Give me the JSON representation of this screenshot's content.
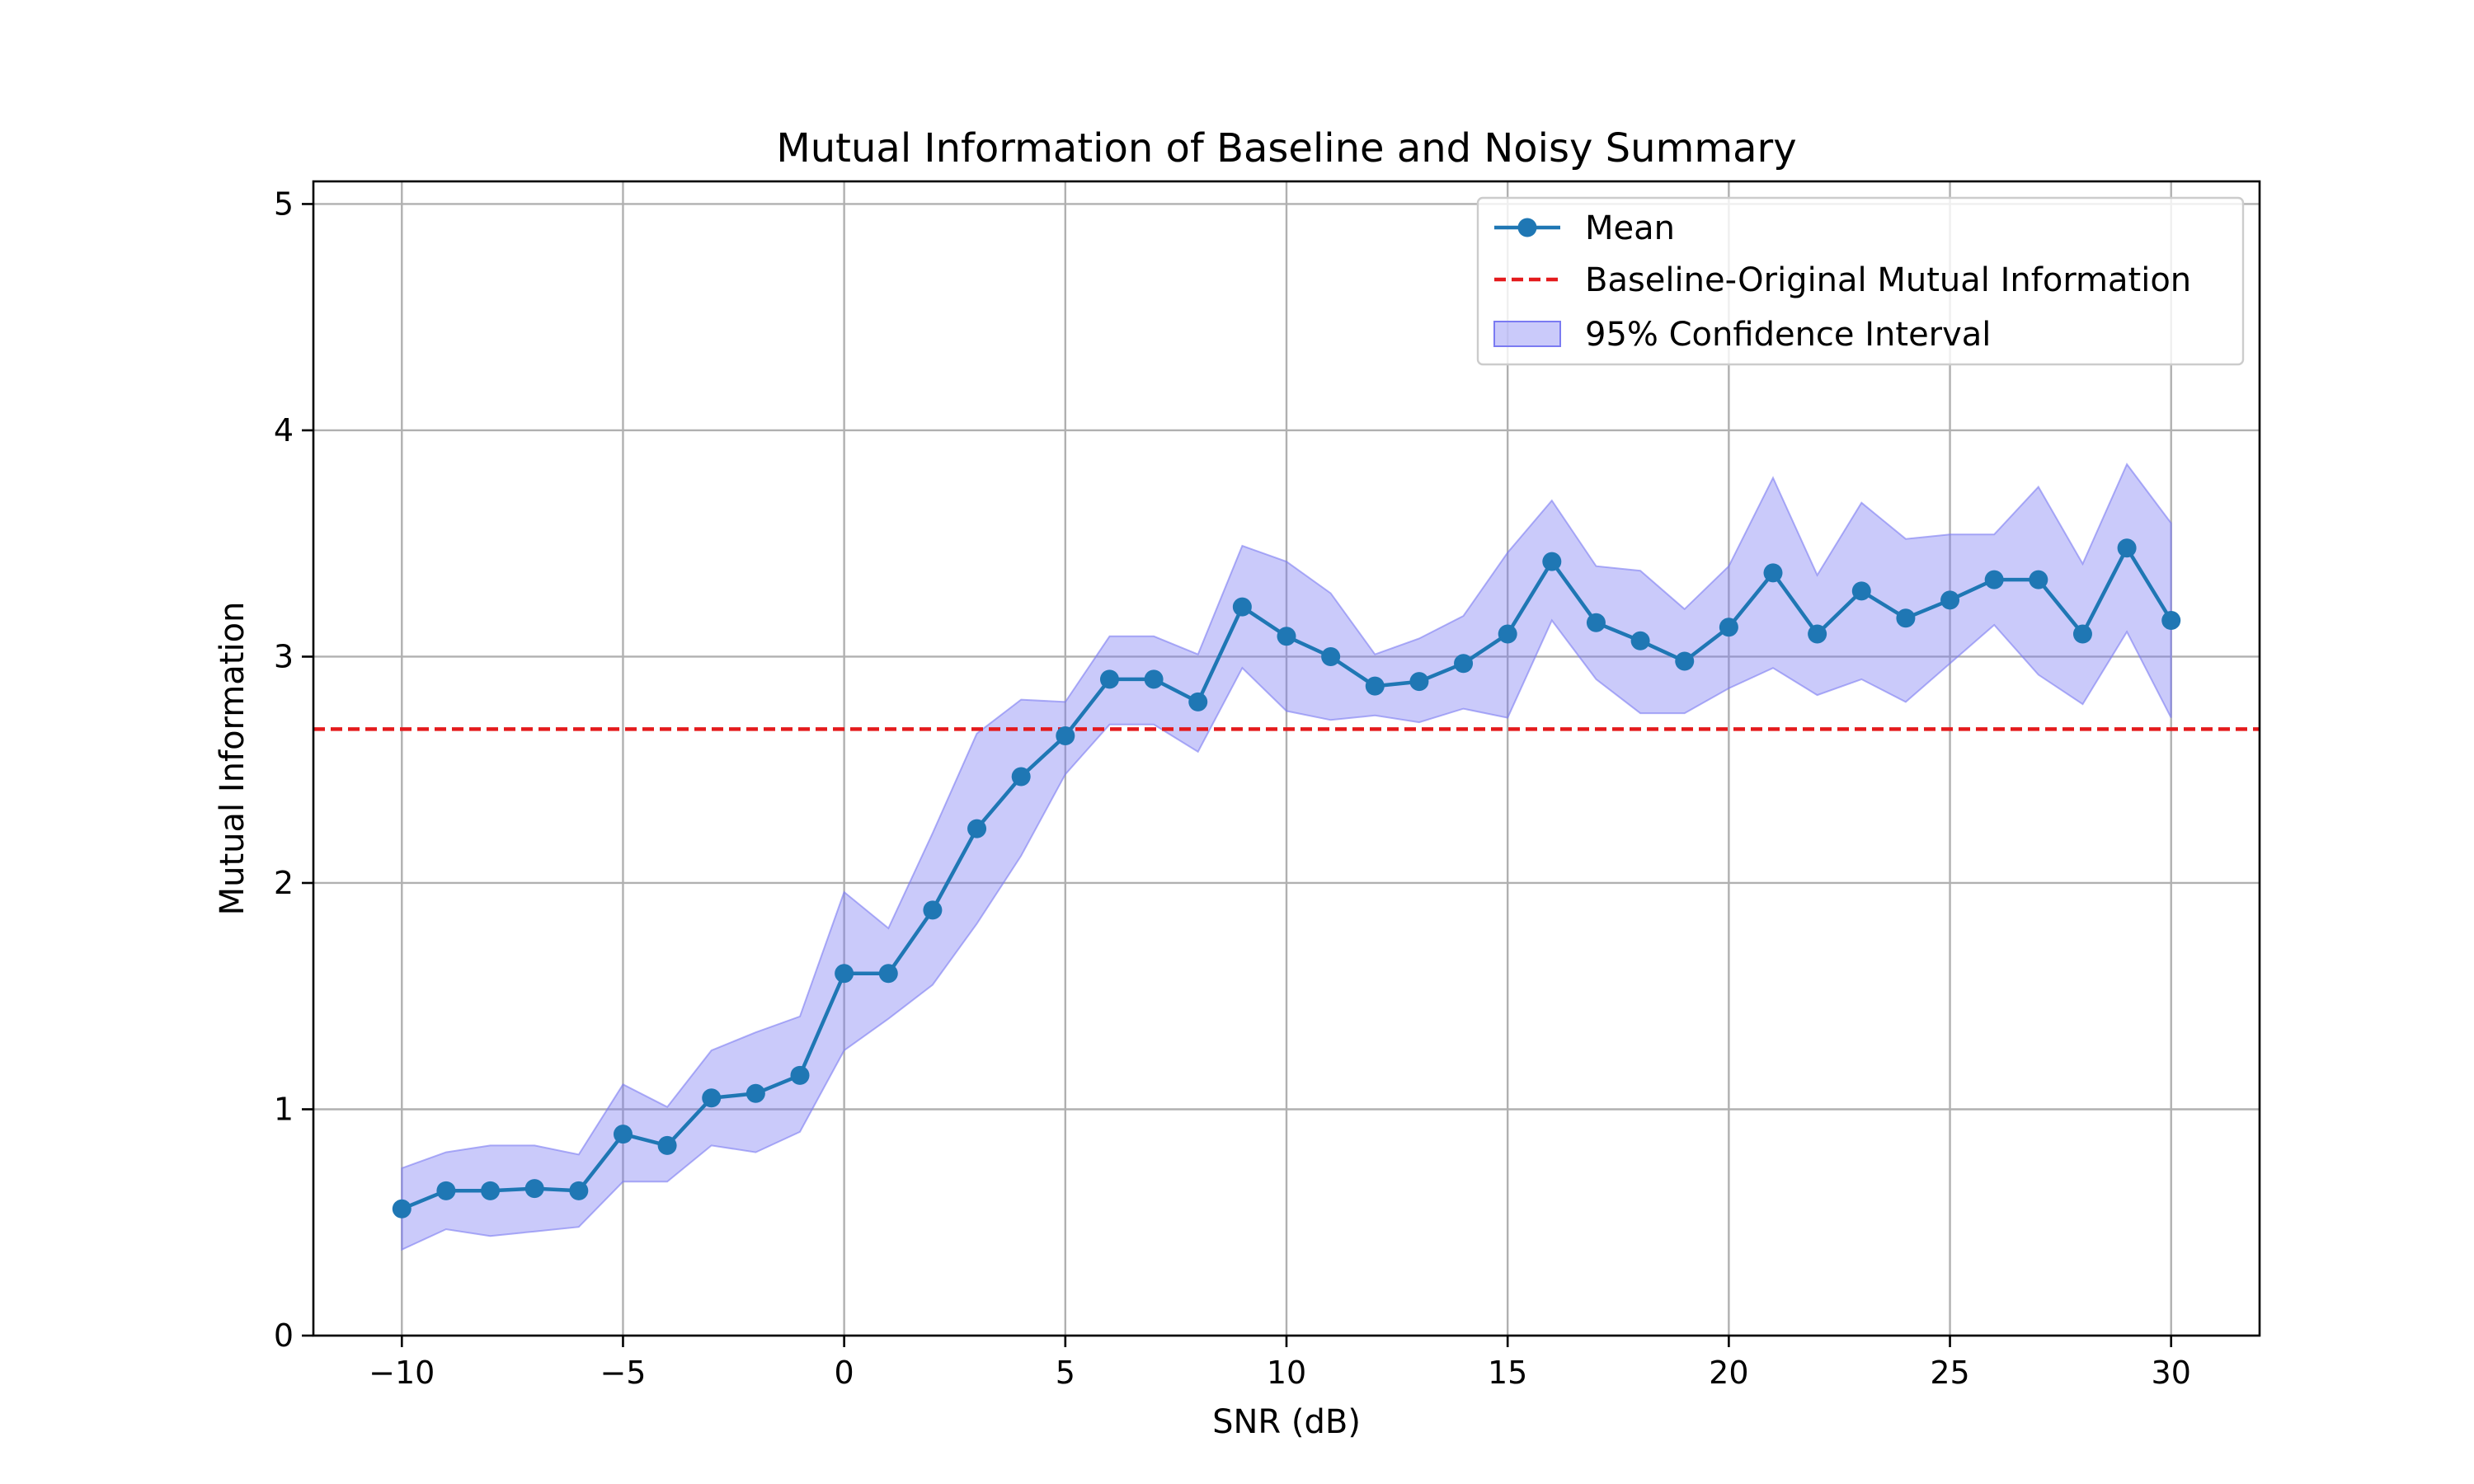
{
  "chart_data": {
    "type": "line",
    "title": "Mutual Information of Baseline and Noisy Summary",
    "xlabel": "SNR (dB)",
    "ylabel": "Mutual Information",
    "xlim": [
      -12,
      32
    ],
    "ylim": [
      0,
      5.1
    ],
    "xticks": [
      -10,
      -5,
      0,
      5,
      10,
      15,
      20,
      25,
      30
    ],
    "xtick_labels": [
      "−10",
      "−5",
      "0",
      "5",
      "10",
      "15",
      "20",
      "25",
      "30"
    ],
    "yticks": [
      0,
      1,
      2,
      3,
      4,
      5
    ],
    "ytick_labels": [
      "0",
      "1",
      "2",
      "3",
      "4",
      "5"
    ],
    "grid": true,
    "legend_position": "top-right",
    "x": [
      -10,
      -9,
      -8,
      -7,
      -6,
      -5,
      -4,
      -3,
      -2,
      -1,
      0,
      1,
      2,
      3,
      4,
      5,
      6,
      7,
      8,
      9,
      10,
      11,
      12,
      13,
      14,
      15,
      16,
      17,
      18,
      19,
      20,
      21,
      22,
      23,
      24,
      25,
      26,
      27,
      28,
      29,
      30
    ],
    "series": [
      {
        "name": "Mean",
        "color": "#1f77b4",
        "values": [
          0.56,
          0.64,
          0.64,
          0.65,
          0.64,
          0.89,
          0.84,
          1.05,
          1.07,
          1.15,
          1.6,
          1.6,
          1.88,
          2.24,
          2.47,
          2.65,
          2.9,
          2.9,
          2.8,
          3.22,
          3.09,
          3.0,
          2.87,
          2.89,
          2.97,
          3.1,
          3.42,
          3.15,
          3.07,
          2.98,
          3.13,
          3.37,
          3.1,
          3.29,
          3.17,
          3.25,
          3.34,
          3.34,
          3.1,
          3.48,
          3.16
        ]
      },
      {
        "name": "Baseline-Original Mutual Information",
        "color": "#e41a1c",
        "value": 2.68
      },
      {
        "name": "95% Confidence Interval",
        "color": "#7b7bf2",
        "lower": [
          0.38,
          0.47,
          0.44,
          0.46,
          0.48,
          0.68,
          0.68,
          0.84,
          0.81,
          0.9,
          1.26,
          1.4,
          1.55,
          1.82,
          2.12,
          2.48,
          2.7,
          2.7,
          2.58,
          2.95,
          2.76,
          2.72,
          2.74,
          2.71,
          2.77,
          2.73,
          3.16,
          2.9,
          2.75,
          2.75,
          2.86,
          2.95,
          2.83,
          2.9,
          2.8,
          2.97,
          3.14,
          2.92,
          2.79,
          3.11,
          2.73
        ],
        "upper": [
          0.74,
          0.81,
          0.84,
          0.84,
          0.8,
          1.11,
          1.01,
          1.26,
          1.34,
          1.41,
          1.96,
          1.8,
          2.22,
          2.66,
          2.81,
          2.8,
          3.09,
          3.09,
          3.01,
          3.49,
          3.42,
          3.28,
          3.01,
          3.08,
          3.18,
          3.46,
          3.69,
          3.4,
          3.38,
          3.21,
          3.4,
          3.79,
          3.36,
          3.68,
          3.52,
          3.54,
          3.54,
          3.75,
          3.41,
          3.85,
          3.59
        ]
      }
    ]
  }
}
